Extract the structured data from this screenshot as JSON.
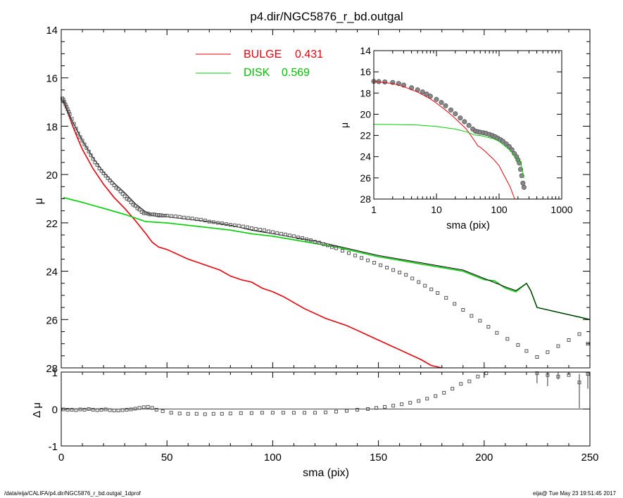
{
  "chart_data": [
    {
      "id": "main",
      "type": "scatter",
      "title": "p4.dir/NGC5876_r_bd.outgal",
      "xlabel": "",
      "ylabel": "μ",
      "xlim": [
        0,
        250
      ],
      "ylim": [
        28,
        14
      ],
      "y_reversed": true,
      "xticks": [
        0,
        50,
        100,
        150,
        200,
        250
      ],
      "yticks": [
        14,
        16,
        18,
        20,
        22,
        24,
        26,
        28
      ],
      "legend": {
        "placement": "top-center",
        "entries": [
          {
            "label": "BULGE",
            "value": "0.431",
            "color": "#e8000b"
          },
          {
            "label": "DISK",
            "value": "0.569",
            "color": "#00d000"
          }
        ]
      },
      "series": [
        {
          "name": "BULGE",
          "kind": "line",
          "color": "#e8000b",
          "x": [
            1,
            3,
            5,
            8,
            10,
            15,
            20,
            25,
            30,
            35,
            40,
            43,
            46,
            50,
            55,
            60,
            65,
            70,
            75,
            80,
            85,
            90,
            95,
            100,
            105,
            110,
            115,
            120,
            125,
            130,
            135,
            140,
            145,
            150,
            155,
            160,
            165,
            170,
            175,
            180
          ],
          "y": [
            16.9,
            17.4,
            17.9,
            18.55,
            18.95,
            19.75,
            20.4,
            20.95,
            21.4,
            21.9,
            22.45,
            22.8,
            23.0,
            23.1,
            23.3,
            23.5,
            23.65,
            23.8,
            23.95,
            24.2,
            24.35,
            24.45,
            24.7,
            24.85,
            25.05,
            25.3,
            25.55,
            25.75,
            25.95,
            26.1,
            26.25,
            26.45,
            26.65,
            26.85,
            27.05,
            27.25,
            27.45,
            27.65,
            27.9,
            28.1
          ]
        },
        {
          "name": "DISK",
          "kind": "line",
          "color": "#00d000",
          "x": [
            1,
            10,
            20,
            30,
            40,
            50,
            60,
            70,
            80,
            90,
            100,
            110,
            120,
            130,
            140,
            150,
            160,
            170,
            180,
            190,
            200,
            205,
            210,
            215,
            220,
            222,
            225,
            235,
            245,
            250
          ],
          "y": [
            20.95,
            21.15,
            21.4,
            21.65,
            21.95,
            22.0,
            22.1,
            22.2,
            22.3,
            22.45,
            22.55,
            22.7,
            22.85,
            23.0,
            23.2,
            23.4,
            23.55,
            23.7,
            23.85,
            24.0,
            24.35,
            24.4,
            24.7,
            24.85,
            24.5,
            24.8,
            25.5,
            25.7,
            25.9,
            26.0
          ]
        },
        {
          "name": "model",
          "kind": "line",
          "color": "#000000",
          "x": [
            1,
            3,
            5,
            8,
            10,
            15,
            20,
            25,
            30,
            35,
            40,
            43,
            46,
            50,
            60,
            70,
            80,
            90,
            100,
            110,
            120,
            130,
            140,
            150,
            160,
            170,
            180,
            190,
            200,
            210,
            215,
            220,
            222,
            225,
            235,
            245,
            250
          ],
          "y": [
            16.9,
            17.35,
            17.75,
            18.25,
            18.6,
            19.3,
            19.9,
            20.35,
            20.75,
            21.2,
            21.55,
            21.7,
            21.75,
            21.75,
            21.85,
            21.95,
            22.1,
            22.3,
            22.45,
            22.6,
            22.75,
            22.95,
            23.15,
            23.35,
            23.5,
            23.65,
            23.8,
            23.95,
            24.3,
            24.65,
            24.8,
            24.5,
            24.8,
            25.5,
            25.7,
            25.9,
            26.0
          ]
        },
        {
          "name": "data",
          "kind": "points",
          "color": "#000000",
          "x": [
            0.5,
            1,
            1.5,
            2,
            2.5,
            3,
            3.5,
            4,
            5,
            6,
            7,
            8,
            9,
            10,
            11,
            12,
            13,
            14,
            15,
            16,
            17,
            18,
            19,
            20,
            21,
            22,
            23,
            24,
            25,
            26,
            27,
            28,
            29,
            30,
            31,
            32,
            33,
            34,
            35,
            36,
            37,
            38,
            39,
            40,
            41,
            42,
            43,
            44,
            45,
            46,
            47,
            48,
            49,
            50,
            52,
            54,
            56,
            58,
            60,
            62,
            64,
            66,
            68,
            70,
            72,
            74,
            76,
            78,
            80,
            82,
            84,
            86,
            88,
            90,
            92,
            94,
            96,
            98,
            100,
            102,
            104,
            106,
            108,
            110,
            112,
            114,
            116,
            118,
            120,
            122,
            124,
            126,
            128,
            130,
            133,
            136,
            139,
            142,
            145,
            148,
            151,
            154,
            157,
            160,
            163,
            166,
            169,
            172,
            175,
            178,
            182,
            186,
            190,
            194,
            198,
            202,
            206,
            211,
            216,
            220,
            225,
            230,
            235,
            240,
            245,
            249
          ],
          "y": [
            16.85,
            16.9,
            17.0,
            17.1,
            17.2,
            17.3,
            17.4,
            17.5,
            17.7,
            17.9,
            18.1,
            18.3,
            18.45,
            18.6,
            18.75,
            18.9,
            19.05,
            19.2,
            19.35,
            19.5,
            19.6,
            19.75,
            19.85,
            19.95,
            20.05,
            20.15,
            20.25,
            20.35,
            20.45,
            20.55,
            20.6,
            20.7,
            20.8,
            20.9,
            21.0,
            21.05,
            21.15,
            21.25,
            21.3,
            21.4,
            21.45,
            21.55,
            21.6,
            21.6,
            21.62,
            21.65,
            21.65,
            21.65,
            21.67,
            21.67,
            21.68,
            21.7,
            21.7,
            21.7,
            21.72,
            21.73,
            21.75,
            21.78,
            21.8,
            21.82,
            21.85,
            21.87,
            21.9,
            21.95,
            21.97,
            22.0,
            22.02,
            22.05,
            22.08,
            22.1,
            22.12,
            22.15,
            22.18,
            22.22,
            22.25,
            22.28,
            22.3,
            22.35,
            22.38,
            22.42,
            22.45,
            22.48,
            22.52,
            22.55,
            22.6,
            22.63,
            22.68,
            22.72,
            22.78,
            22.82,
            22.88,
            22.93,
            23.0,
            23.05,
            23.15,
            23.25,
            23.35,
            23.45,
            23.55,
            23.65,
            23.75,
            23.85,
            23.95,
            24.05,
            24.15,
            24.3,
            24.45,
            24.6,
            24.75,
            24.9,
            25.1,
            25.35,
            25.6,
            25.85,
            26.05,
            26.3,
            26.55,
            26.8,
            27.05,
            27.3,
            27.55,
            27.35,
            27.1,
            26.85,
            26.6,
            27.0
          ]
        }
      ]
    },
    {
      "id": "residual",
      "type": "scatter",
      "xlabel": "sma (pix)",
      "ylabel": "Δ μ",
      "xlim": [
        0,
        250
      ],
      "ylim": [
        -1,
        1
      ],
      "xticks": [
        0,
        50,
        100,
        150,
        200,
        250
      ],
      "yticks": [
        -1,
        0,
        1
      ],
      "zero_line": true,
      "series": [
        {
          "name": "residual",
          "kind": "points",
          "color": "#000000",
          "x": [
            1,
            3,
            5,
            7,
            9,
            11,
            13,
            15,
            17,
            19,
            21,
            23,
            25,
            27,
            29,
            31,
            33,
            35,
            37,
            39,
            41,
            43,
            45,
            48,
            52,
            56,
            60,
            64,
            68,
            72,
            76,
            80,
            85,
            90,
            95,
            100,
            105,
            110,
            115,
            120,
            125,
            130,
            135,
            140,
            145,
            149,
            153,
            157,
            161,
            165,
            169,
            173,
            177,
            181,
            185,
            189,
            193,
            197,
            201,
            225,
            230,
            235,
            240,
            245,
            249
          ],
          "y": [
            -0.01,
            -0.02,
            -0.02,
            -0.03,
            -0.01,
            -0.02,
            0.0,
            -0.02,
            -0.03,
            -0.02,
            -0.01,
            -0.03,
            -0.04,
            -0.04,
            -0.03,
            -0.02,
            -0.01,
            0.01,
            0.03,
            0.05,
            0.06,
            0.03,
            -0.02,
            -0.06,
            -0.1,
            -0.12,
            -0.13,
            -0.13,
            -0.14,
            -0.13,
            -0.13,
            -0.12,
            -0.11,
            -0.11,
            -0.1,
            -0.1,
            -0.1,
            -0.1,
            -0.1,
            -0.1,
            -0.09,
            -0.07,
            -0.05,
            -0.02,
            0.0,
            0.03,
            0.06,
            0.09,
            0.13,
            0.17,
            0.22,
            0.28,
            0.35,
            0.44,
            0.55,
            0.68,
            0.75,
            0.88,
            0.97,
            0.97,
            0.92,
            0.88,
            0.92,
            0.72,
            0.95
          ]
        }
      ],
      "error_bars": {
        "x": [
          225,
          230,
          235,
          245,
          249
        ],
        "y": [
          1.0,
          1.0,
          1.0,
          0.95,
          1.0
        ],
        "lower": [
          0.7,
          0.62,
          0.8,
          0.02,
          0.55
        ]
      }
    },
    {
      "id": "inset",
      "type": "scatter",
      "xlabel": "sma (pix)",
      "ylabel": "μ",
      "xscale": "log",
      "xlim": [
        1,
        1000
      ],
      "ylim": [
        28,
        14
      ],
      "y_reversed": true,
      "xticks": [
        1,
        10,
        100,
        1000
      ],
      "yticks": [
        14,
        16,
        18,
        20,
        22,
        24,
        26,
        28
      ],
      "series": [
        {
          "name": "BULGE",
          "kind": "line",
          "color": "#e8000b",
          "x": [
            1,
            2,
            3,
            5,
            8,
            10,
            15,
            20,
            30,
            40,
            46,
            50,
            60,
            80,
            100,
            120,
            150,
            180,
            200
          ],
          "y": [
            16.9,
            17.1,
            17.4,
            17.9,
            18.55,
            18.95,
            19.75,
            20.4,
            21.4,
            22.45,
            23.0,
            23.1,
            23.5,
            24.2,
            24.85,
            25.75,
            26.85,
            28.1,
            28.5
          ]
        },
        {
          "name": "DISK",
          "kind": "line",
          "color": "#00d000",
          "x": [
            1,
            2,
            5,
            10,
            20,
            30,
            40,
            50,
            80,
            100,
            150,
            200,
            220,
            250
          ],
          "y": [
            20.95,
            20.97,
            21.02,
            21.15,
            21.4,
            21.65,
            21.95,
            22.0,
            22.3,
            22.55,
            23.4,
            24.35,
            24.5,
            26.0
          ]
        },
        {
          "name": "data",
          "kind": "points",
          "color": "#000000",
          "x": [
            1,
            1.2,
            1.5,
            2,
            2.5,
            3,
            4,
            5,
            6,
            7,
            8,
            10,
            12,
            14,
            17,
            20,
            24,
            28,
            33,
            38,
            42,
            46,
            50,
            56,
            62,
            70,
            78,
            86,
            95,
            105,
            115,
            130,
            145,
            160,
            175,
            190,
            200,
            210,
            220,
            230,
            240,
            250
          ],
          "y": [
            16.9,
            16.92,
            16.95,
            17.0,
            17.1,
            17.25,
            17.5,
            17.7,
            17.9,
            18.1,
            18.3,
            18.6,
            18.9,
            19.2,
            19.6,
            19.95,
            20.35,
            20.7,
            21.05,
            21.4,
            21.6,
            21.65,
            21.7,
            21.75,
            21.8,
            21.9,
            22.0,
            22.12,
            22.25,
            22.4,
            22.55,
            22.8,
            23.05,
            23.35,
            23.7,
            24.0,
            24.3,
            24.6,
            25.2,
            25.8,
            26.5,
            26.9
          ]
        }
      ]
    }
  ],
  "footer": {
    "left": "/data/eija/CALIFA/p4.dir/NGC5876_r_bd.outgal_1dprof",
    "right": "eija@  Tue May 23 19:51:45 2017"
  }
}
